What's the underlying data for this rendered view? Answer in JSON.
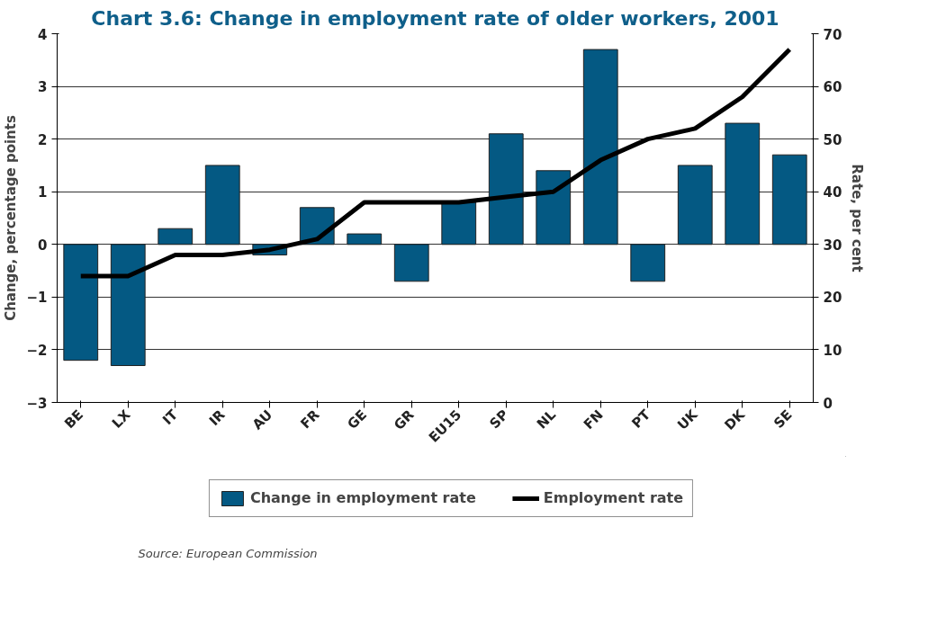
{
  "chart_data": {
    "type": "bar",
    "title": "Chart 3.6: Change in employment rate of older workers, 2001",
    "categories": [
      "BE",
      "LX",
      "IT",
      "IR",
      "AU",
      "FR",
      "GE",
      "GR",
      "EU15",
      "SP",
      "NL",
      "FN",
      "PT",
      "UK",
      "DK",
      "SE"
    ],
    "series": [
      {
        "name": "Change in employment rate",
        "color": "#045983",
        "values": [
          -2.2,
          -2.3,
          0.3,
          1.5,
          -0.2,
          0.7,
          0.2,
          -0.7,
          0.8,
          2.1,
          1.4,
          3.7,
          -0.7,
          1.5,
          2.3,
          1.7
        ]
      },
      {
        "name": "Employment rate",
        "type": "line",
        "axis": "y2",
        "color": "#000000",
        "values": [
          24,
          24,
          28,
          28,
          29,
          31,
          38,
          38,
          38,
          39,
          40,
          46,
          50,
          52,
          58,
          67
        ]
      }
    ],
    "ylabel": "Change, percentage points",
    "y2label": "Rate, per cent",
    "ylim": [
      -3,
      4
    ],
    "yticks": [
      -3,
      -2,
      -1,
      0,
      1,
      2,
      3,
      4
    ],
    "y2lim": [
      0,
      70
    ],
    "y2ticks": [
      0,
      10,
      20,
      30,
      40,
      50,
      60,
      70
    ],
    "grid": "y",
    "legend": "bottom",
    "line_style": "solid",
    "marker": "none",
    "annotations": [
      "Source: European Commission"
    ]
  }
}
